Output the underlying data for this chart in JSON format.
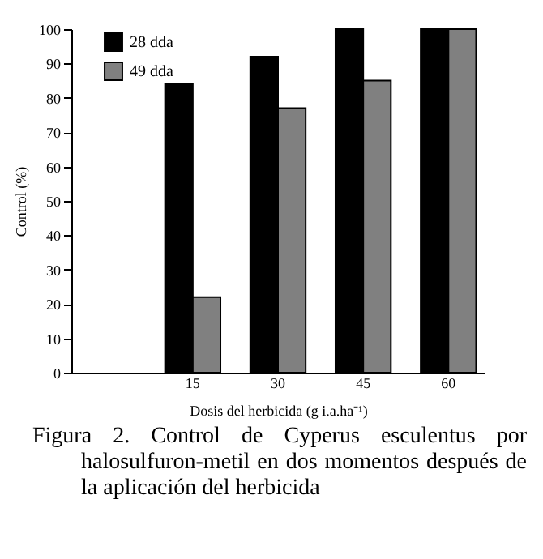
{
  "chart_data": {
    "type": "bar",
    "ylabel": "Control (%)",
    "xlabel": "Dosis del herbicida (g i.a.ha⁻¹)",
    "categories": [
      null,
      "15",
      "30",
      "45",
      "60"
    ],
    "series": [
      {
        "name": "28 dda",
        "color": "#000000",
        "values": [
          null,
          84,
          92,
          100,
          100
        ]
      },
      {
        "name": "49 dda",
        "color": "#808080",
        "values": [
          null,
          22,
          77,
          85,
          100
        ]
      }
    ],
    "ylim": [
      0,
      100
    ],
    "yticks": [
      0,
      10,
      20,
      30,
      40,
      50,
      60,
      70,
      80,
      90,
      100
    ],
    "grid": false,
    "legend": "top left",
    "annotations": [
      "Figura 2. Control de Cyperus esculentus por halosulfuron-metil en dos momentos después de la aplicación del herbicida"
    ]
  }
}
